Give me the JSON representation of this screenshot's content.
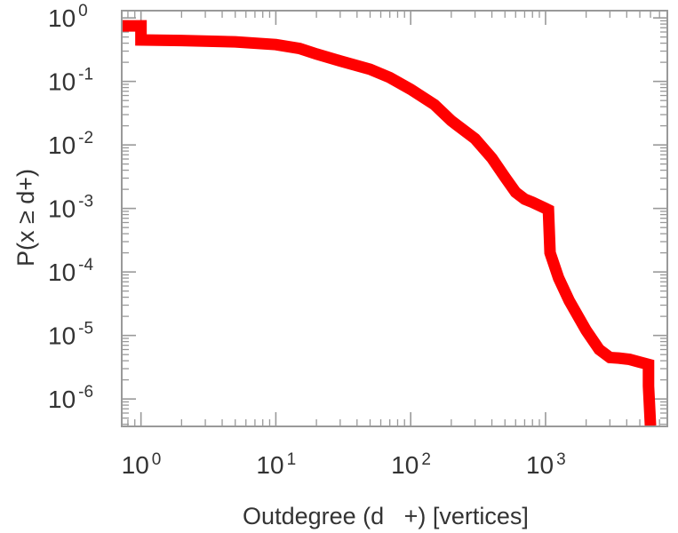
{
  "chart_data": {
    "type": "line",
    "title": "",
    "xlabel": "Outdegree (d   +) [vertices]",
    "ylabel": "P(x ≥ d+)",
    "x_scale": "log",
    "y_scale": "log",
    "xlim": [
      0.72,
      8000
    ],
    "ylim": [
      3.7e-07,
      1.3
    ],
    "grid": false,
    "x_ticks": [
      {
        "value": 1,
        "base": "10",
        "exp": "0"
      },
      {
        "value": 10,
        "base": "10",
        "exp": "1"
      },
      {
        "value": 100,
        "base": "10",
        "exp": "2"
      },
      {
        "value": 1000,
        "base": "10",
        "exp": "3"
      }
    ],
    "y_ticks": [
      {
        "value": 1,
        "base": "10",
        "exp": "0"
      },
      {
        "value": 0.1,
        "base": "10",
        "exp": "-1"
      },
      {
        "value": 0.01,
        "base": "10",
        "exp": "-2"
      },
      {
        "value": 0.001,
        "base": "10",
        "exp": "-3"
      },
      {
        "value": 0.0001,
        "base": "10",
        "exp": "-4"
      },
      {
        "value": 1e-05,
        "base": "10",
        "exp": "-5"
      },
      {
        "value": 1e-06,
        "base": "10",
        "exp": "-6"
      }
    ],
    "series": [
      {
        "color": "#ff0000",
        "points": [
          [
            0.72,
            0.75
          ],
          [
            1.0,
            0.75
          ],
          [
            1.0,
            0.45
          ],
          [
            2,
            0.44
          ],
          [
            5,
            0.42
          ],
          [
            10,
            0.38
          ],
          [
            15,
            0.33
          ],
          [
            20,
            0.27
          ],
          [
            30,
            0.21
          ],
          [
            50,
            0.155
          ],
          [
            70,
            0.115
          ],
          [
            100,
            0.075
          ],
          [
            150,
            0.043
          ],
          [
            200,
            0.024
          ],
          [
            300,
            0.0125
          ],
          [
            400,
            0.0062
          ],
          [
            500,
            0.0031
          ],
          [
            600,
            0.0018
          ],
          [
            700,
            0.0014
          ],
          [
            800,
            0.00125
          ],
          [
            1000,
            0.001
          ],
          [
            1050,
            0.00095
          ],
          [
            1080,
            0.0002
          ],
          [
            1250,
            8e-05
          ],
          [
            1500,
            3.5e-05
          ],
          [
            2000,
            1.2e-05
          ],
          [
            2500,
            6e-06
          ],
          [
            3000,
            4.5e-06
          ],
          [
            3500,
            4.4e-06
          ],
          [
            4200,
            4.2e-06
          ],
          [
            5000,
            3.8e-06
          ],
          [
            5800,
            3.5e-06
          ],
          [
            5800,
            1.6e-06
          ],
          [
            6000,
            3.8e-07
          ]
        ]
      }
    ]
  },
  "colors": {
    "series": "#ff0000",
    "frame": "#999999",
    "text": "#333333",
    "background": "#ffffff"
  }
}
